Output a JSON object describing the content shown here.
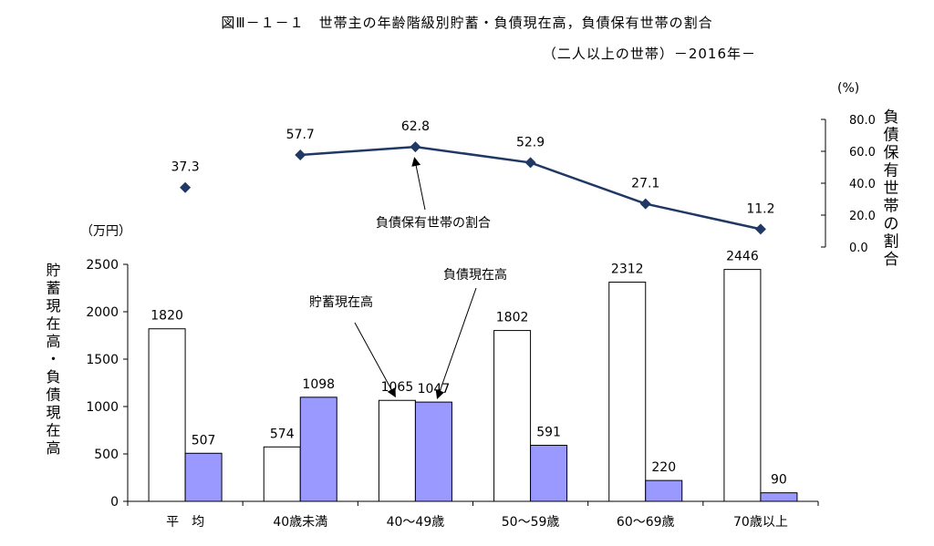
{
  "title": "図Ⅲ－１－１　世帯主の年齢階級別貯蓄・負債現在高，負債保有世帯の割合",
  "subtitle": "（二人以上の世帯）－2016年－",
  "chart_data": [
    {
      "type": "bar",
      "categories": [
        "平　均",
        "40歳未満",
        "40～49歳",
        "50～59歳",
        "60～69歳",
        "70歳以上"
      ],
      "series": [
        {
          "name": "貯蓄現在高",
          "values": [
            1820,
            574,
            1065,
            1802,
            2312,
            2446
          ],
          "color": "#ffffff"
        },
        {
          "name": "負債現在高",
          "values": [
            507,
            1098,
            1047,
            591,
            220,
            90
          ],
          "color": "#9999ff"
        }
      ],
      "ylabel": "貯蓄現在高・負債現在高",
      "yunit": "（万円）",
      "ylim": [
        0,
        2500
      ],
      "yticks": [
        0,
        500,
        1000,
        1500,
        2000,
        2500
      ],
      "annotations": [
        "貯蓄現在高",
        "負債現在高"
      ]
    },
    {
      "type": "line",
      "categories": [
        "平　均",
        "40歳未満",
        "40～49歳",
        "50～59歳",
        "60～69歳",
        "70歳以上"
      ],
      "series": [
        {
          "name": "負債保有世帯の割合",
          "values": [
            37.3,
            57.7,
            62.8,
            52.9,
            27.1,
            11.2
          ],
          "color": "#1f3864"
        }
      ],
      "ylabel": "負債保有世帯の割合",
      "yunit": "(%)",
      "ylim": [
        0,
        80
      ],
      "yticks": [
        "0.0",
        "20.0",
        "40.0",
        "60.0",
        "80.0"
      ],
      "annotation": "負債保有世帯の割合"
    }
  ]
}
